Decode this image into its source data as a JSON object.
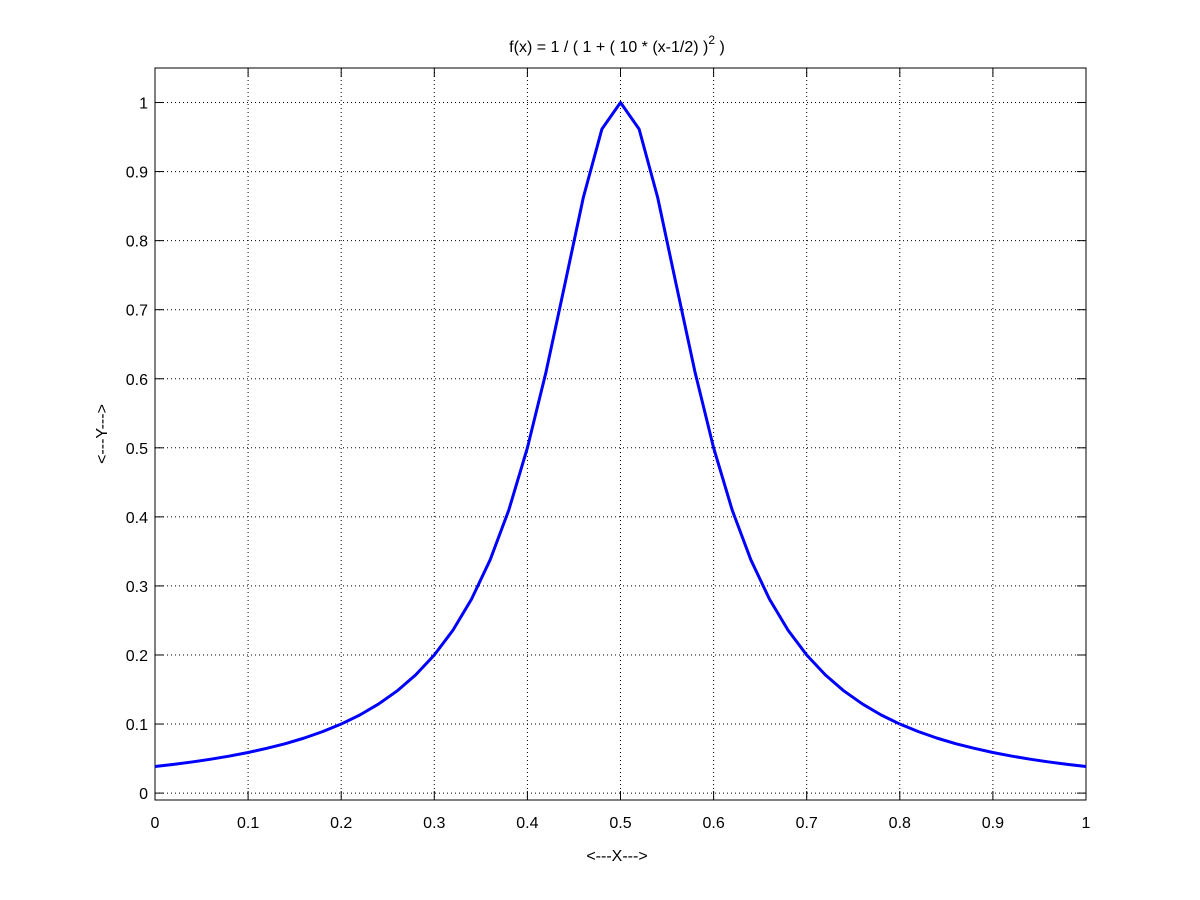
{
  "chart_data": {
    "type": "line",
    "title": [
      "f(x) = 1 / ( 1 + ( 10 * (x-1/2) )",
      "2",
      " )"
    ],
    "xlabel": "<---X--->",
    "ylabel": "<---Y--->",
    "x": [
      0,
      0.02,
      0.04,
      0.06,
      0.08,
      0.1,
      0.12,
      0.14,
      0.16,
      0.18,
      0.2,
      0.22,
      0.24,
      0.26,
      0.28,
      0.3,
      0.32,
      0.34,
      0.36,
      0.38,
      0.4,
      0.42,
      0.44,
      0.46,
      0.48,
      0.5,
      0.52,
      0.54,
      0.56,
      0.58,
      0.6,
      0.62,
      0.64,
      0.66,
      0.68,
      0.7,
      0.72,
      0.74,
      0.76,
      0.78,
      0.8,
      0.82,
      0.84,
      0.86,
      0.88,
      0.9,
      0.92,
      0.94,
      0.96,
      0.98,
      1
    ],
    "series": [
      {
        "name": "f(x)",
        "color": "#0000ff",
        "values": [
          0.0385,
          0.0416,
          0.0451,
          0.0491,
          0.0536,
          0.0588,
          0.0648,
          0.0716,
          0.0796,
          0.089,
          0.1,
          0.1131,
          0.1289,
          0.1479,
          0.1712,
          0.2,
          0.2358,
          0.2809,
          0.3378,
          0.4098,
          0.5,
          0.6098,
          0.7353,
          0.8621,
          0.9615,
          1,
          0.9615,
          0.8621,
          0.7353,
          0.6098,
          0.5,
          0.4098,
          0.3378,
          0.2809,
          0.2358,
          0.2,
          0.1712,
          0.1479,
          0.1289,
          0.1131,
          0.1,
          0.089,
          0.0796,
          0.0716,
          0.0648,
          0.0588,
          0.0536,
          0.0491,
          0.0451,
          0.0416,
          0.0385
        ]
      }
    ],
    "xlim": [
      0,
      1
    ],
    "xticks": [
      0,
      0.1,
      0.2,
      0.3,
      0.4,
      0.5,
      0.6,
      0.7,
      0.8,
      0.9,
      1
    ],
    "ylim": [
      -0.01,
      1.05
    ],
    "yticks": [
      0,
      0.1,
      0.2,
      0.3,
      0.4,
      0.5,
      0.6,
      0.7,
      0.8,
      0.9,
      1
    ],
    "grid": true
  }
}
